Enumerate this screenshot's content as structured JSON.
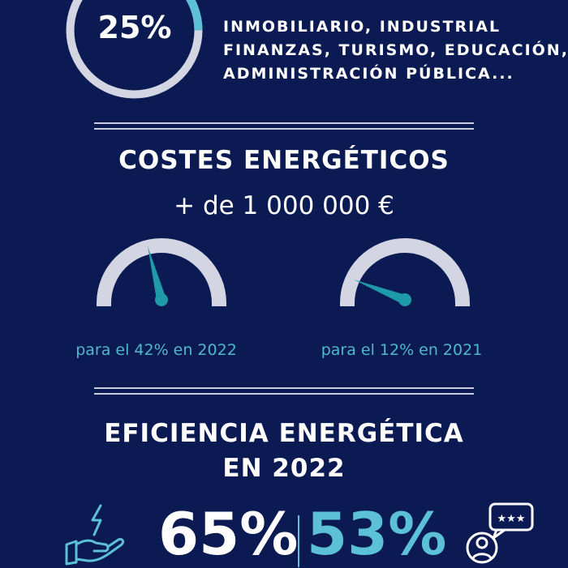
{
  "top_stat": {
    "value": "25%",
    "ring_fill": 0.25
  },
  "sectors": [
    "INMOBILIARIO, INDUSTRIAL",
    "FINANZAS, TURISMO, EDUCACIÓN,",
    "ADMINISTRACIÓN PÚBLICA..."
  ],
  "costes": {
    "title": "COSTES ENERGÉTICOS",
    "amount": "+ de 1 000 000 €",
    "gauges": [
      {
        "caption": "para el 42% en 2022",
        "value": 0.42
      },
      {
        "caption": "para el 12% en 2021",
        "value": 0.12
      }
    ]
  },
  "eficiencia": {
    "title_line1": "EFICIENCIA ENERGÉTICA",
    "title_line2": "EN 2022",
    "stat_left": "65%",
    "stat_right": "53%"
  },
  "icons": [
    "energy-hand-icon",
    "review-chat-icon"
  ],
  "colors": {
    "background": "#0b1a52",
    "accent": "#5cc0d6",
    "gauge_track": "#d3d6e2",
    "needle": "#1e9aa8"
  }
}
